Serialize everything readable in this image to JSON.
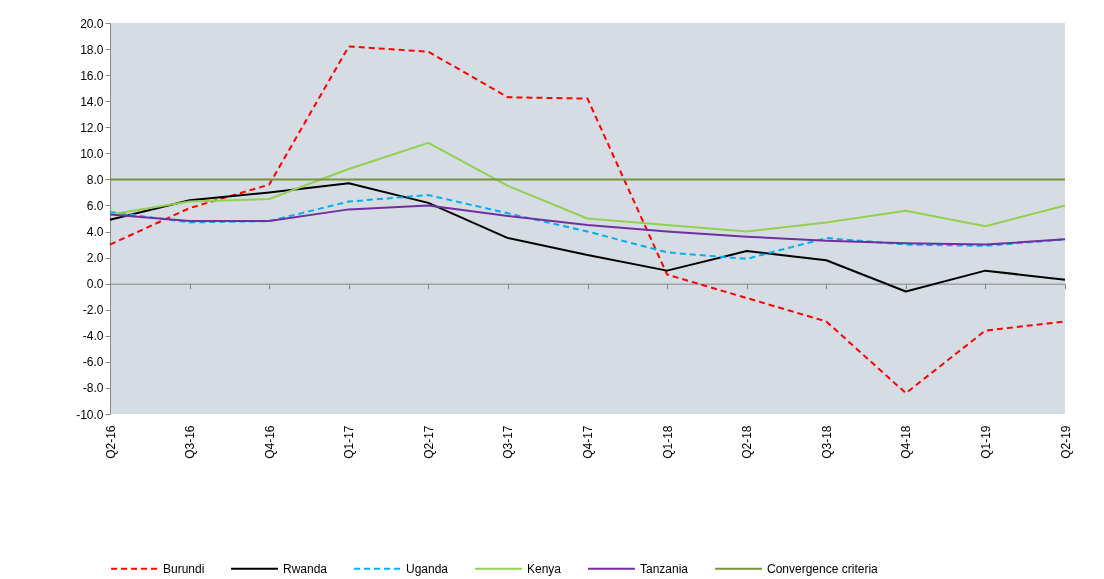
{
  "chart_data": {
    "type": "line",
    "categories": [
      "Q2-16",
      "Q3-16",
      "Q4-16",
      "Q1-17",
      "Q2-17",
      "Q3-17",
      "Q4-17",
      "Q1-18",
      "Q2-18",
      "Q3-18",
      "Q4-18",
      "Q1-19",
      "Q2-19"
    ],
    "ylim": [
      -10,
      20
    ],
    "yticks": [
      {
        "value": -10,
        "label": "-10.0"
      },
      {
        "value": -8,
        "label": "-8.0"
      },
      {
        "value": -6,
        "label": "-6.0"
      },
      {
        "value": -4,
        "label": "-4.0"
      },
      {
        "value": -2,
        "label": "-2.0"
      },
      {
        "value": 0,
        "label": "0.0"
      },
      {
        "value": 2,
        "label": "2.0"
      },
      {
        "value": 4,
        "label": "4.0"
      },
      {
        "value": 6,
        "label": "6.0"
      },
      {
        "value": 8,
        "label": "8.0"
      },
      {
        "value": 10,
        "label": "10.0"
      },
      {
        "value": 12,
        "label": "12.0"
      },
      {
        "value": 14,
        "label": "14.0"
      },
      {
        "value": 16,
        "label": "16.0"
      },
      {
        "value": 18,
        "label": "18.0"
      },
      {
        "value": 20,
        "label": "20.0"
      }
    ],
    "legend": "bottom",
    "marker": "none",
    "series": [
      {
        "name": "Burundi",
        "color": "#ff0000",
        "line_style": "dashed",
        "values": [
          3.0,
          5.8,
          7.6,
          18.2,
          17.8,
          14.3,
          14.2,
          0.7,
          -1.1,
          -2.9,
          -8.4,
          -3.6,
          -2.9
        ]
      },
      {
        "name": "Rwanda",
        "color": "#000000",
        "line_style": "solid",
        "values": [
          4.9,
          6.4,
          7.0,
          7.7,
          6.2,
          3.5,
          2.2,
          1.0,
          2.5,
          1.8,
          -0.6,
          1.0,
          0.3
        ]
      },
      {
        "name": "Uganda",
        "color": "#00b0f0",
        "line_style": "dashed",
        "values": [
          5.5,
          4.7,
          4.8,
          6.3,
          6.8,
          5.4,
          4.0,
          2.4,
          1.9,
          3.5,
          3.0,
          2.9,
          3.4
        ]
      },
      {
        "name": "Kenya",
        "color": "#92d050",
        "line_style": "solid",
        "values": [
          5.3,
          6.3,
          6.5,
          8.8,
          10.8,
          7.5,
          5.0,
          4.5,
          4.0,
          4.7,
          5.6,
          4.4,
          6.0
        ]
      },
      {
        "name": "Tanzania",
        "color": "#7030a0",
        "line_style": "solid",
        "values": [
          5.3,
          4.8,
          4.8,
          5.7,
          6.0,
          5.2,
          4.5,
          4.0,
          3.6,
          3.3,
          3.1,
          3.0,
          3.4
        ]
      },
      {
        "name": "Convergence criteria",
        "color": "#77933c",
        "line_style": "solid",
        "values": [
          8,
          8,
          8,
          8,
          8,
          8,
          8,
          8,
          8,
          8,
          8,
          8,
          8
        ]
      }
    ]
  }
}
